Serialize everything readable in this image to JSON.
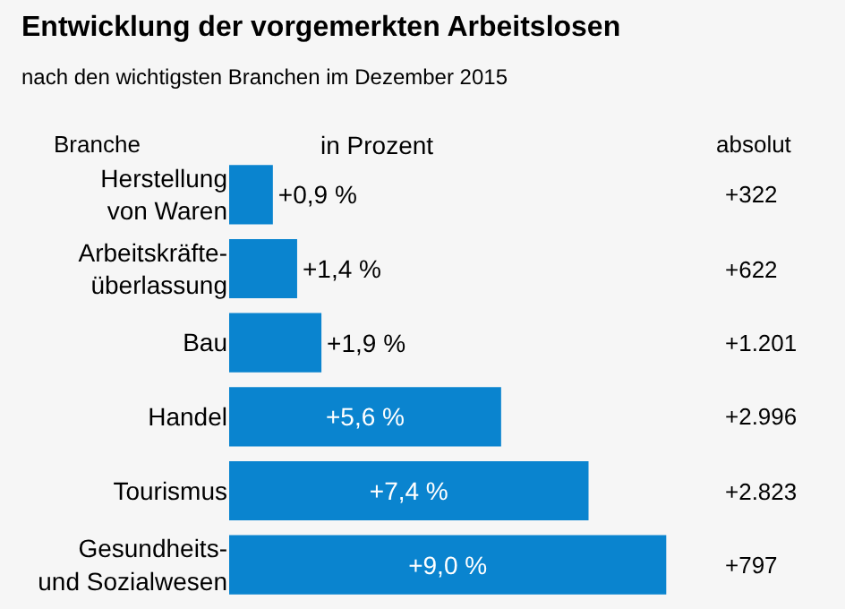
{
  "chart_data": {
    "type": "bar",
    "orientation": "horizontal",
    "title": "Entwicklung der vorgemerkten Arbeitslosen",
    "subtitle": "nach den wichtigsten Branchen im Dezember 2015",
    "ylabel": "Branche",
    "xlabel": "in Prozent",
    "categories": [
      "Herstellung von Waren",
      "Arbeitskräfte-überlassung",
      "Bau",
      "Handel",
      "Tourismus",
      "Gesundheits- und Sozialwesen"
    ],
    "values": [
      0.9,
      1.4,
      1.9,
      5.6,
      7.4,
      9.0
    ],
    "value_labels": [
      "+0,9 %",
      "+1,4 %",
      "+1,9 %",
      "+5,6 %",
      "+7,4 %",
      "+9,0 %"
    ],
    "color": "#0a84cf",
    "tick_labels": "y",
    "grid": false,
    "legend": false,
    "annotations": [
      "absolut",
      "+322",
      "+622",
      "+1.201",
      "+2.996",
      "+2.823",
      "+797"
    ]
  }
}
